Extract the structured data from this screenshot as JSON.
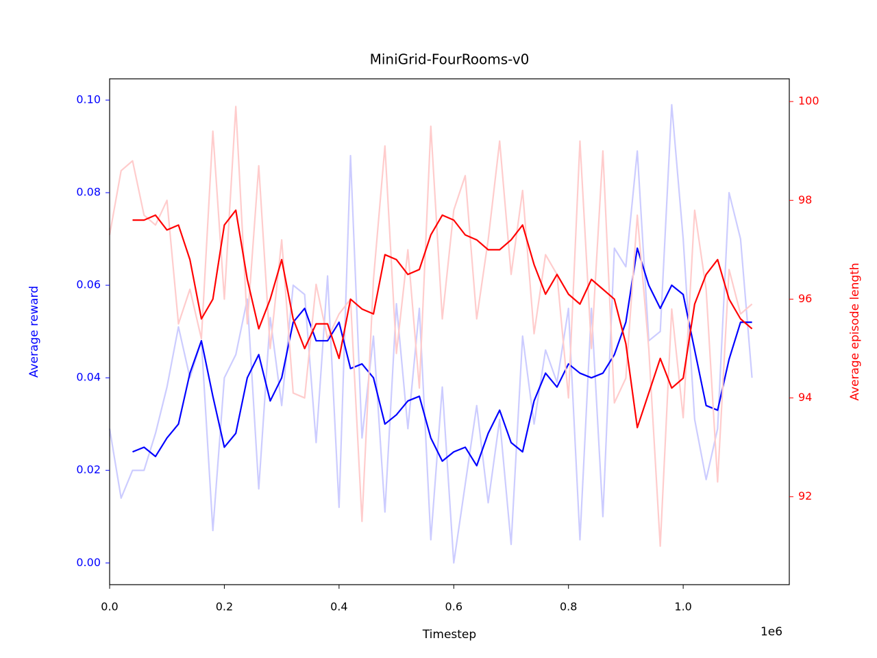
{
  "chart_data": {
    "type": "line",
    "title": "MiniGrid-FourRooms-v0",
    "xlabel": "Timestep",
    "ylabel": "Average reward",
    "y2label": "Average episode length",
    "x_offset_label": "1e6",
    "ylabel_color": "#0000ff",
    "y2label_color": "#ff0000",
    "x": [
      0,
      0.02,
      0.04,
      0.06,
      0.08,
      0.1,
      0.12,
      0.14,
      0.16,
      0.18,
      0.2,
      0.22,
      0.24,
      0.26,
      0.28,
      0.3,
      0.32,
      0.34,
      0.36,
      0.38,
      0.4,
      0.42,
      0.44,
      0.46,
      0.48,
      0.5,
      0.52,
      0.54,
      0.56,
      0.58,
      0.6,
      0.62,
      0.64,
      0.66,
      0.68,
      0.7,
      0.72,
      0.74,
      0.76,
      0.78,
      0.8,
      0.82,
      0.84,
      0.86,
      0.88,
      0.9,
      0.92,
      0.94,
      0.96,
      0.98,
      1.0,
      1.02,
      1.04,
      1.06,
      1.08,
      1.1,
      1.12
    ],
    "series": [
      {
        "color": "#ccccff",
        "axis": "y",
        "values": [
          0.029,
          0.014,
          0.02,
          0.02,
          0.028,
          0.038,
          0.051,
          0.04,
          0.048,
          0.007,
          0.04,
          0.045,
          0.057,
          0.016,
          0.053,
          0.034,
          0.06,
          0.058,
          0.026,
          0.062,
          0.012,
          0.088,
          0.027,
          0.049,
          0.011,
          0.056,
          0.029,
          0.055,
          0.005,
          0.038,
          0.0,
          0.017,
          0.034,
          0.013,
          0.031,
          0.004,
          0.049,
          0.03,
          0.046,
          0.039,
          0.055,
          0.005,
          0.055,
          0.01,
          0.068,
          0.064,
          0.089,
          0.048,
          0.05,
          0.099,
          0.07,
          0.031,
          0.018,
          0.029,
          0.08,
          0.07,
          0.04
        ]
      },
      {
        "color": "#0000ff",
        "axis": "y",
        "values": [
          null,
          null,
          0.024,
          0.025,
          0.023,
          0.027,
          0.03,
          0.041,
          0.048,
          0.036,
          0.025,
          0.028,
          0.04,
          0.045,
          0.035,
          0.04,
          0.052,
          0.055,
          0.048,
          0.048,
          0.052,
          0.042,
          0.043,
          0.04,
          0.03,
          0.032,
          0.035,
          0.036,
          0.027,
          0.022,
          0.024,
          0.025,
          0.021,
          0.028,
          0.033,
          0.026,
          0.024,
          0.035,
          0.041,
          0.038,
          0.043,
          0.041,
          0.04,
          0.041,
          0.045,
          0.052,
          0.068,
          0.06,
          0.055,
          0.06,
          0.058,
          0.046,
          0.034,
          0.033,
          0.044,
          0.052,
          0.052
        ]
      },
      {
        "color": "#ffcccc",
        "axis": "y2",
        "values": [
          97.3,
          98.6,
          98.8,
          97.7,
          97.5,
          98.0,
          95.5,
          96.2,
          95.2,
          99.4,
          96.0,
          99.9,
          95.5,
          98.7,
          95.0,
          97.2,
          94.1,
          94.0,
          96.3,
          95.2,
          95.7,
          96.0,
          91.5,
          96.4,
          99.1,
          94.9,
          97.0,
          94.2,
          99.5,
          95.6,
          97.8,
          98.5,
          95.6,
          97.2,
          99.2,
          96.5,
          98.2,
          95.3,
          96.9,
          96.5,
          94.0,
          99.2,
          95.0,
          99.0,
          93.9,
          94.4,
          97.7,
          95.0,
          91.0,
          95.8,
          93.6,
          97.8,
          96.2,
          92.3,
          96.6,
          95.7,
          95.9
        ]
      },
      {
        "color": "#ff0000",
        "axis": "y2",
        "values": [
          null,
          null,
          97.6,
          97.6,
          97.7,
          97.4,
          97.5,
          96.8,
          95.6,
          96.0,
          97.5,
          97.8,
          96.4,
          95.4,
          96.0,
          96.8,
          95.6,
          95.0,
          95.5,
          95.5,
          94.8,
          96.0,
          95.8,
          95.7,
          96.9,
          96.8,
          96.5,
          96.6,
          97.3,
          97.7,
          97.6,
          97.3,
          97.2,
          97.0,
          97.0,
          97.2,
          97.5,
          96.7,
          96.1,
          96.5,
          96.1,
          95.9,
          96.4,
          96.2,
          96.0,
          95.1,
          93.4,
          94.1,
          94.8,
          94.2,
          94.4,
          95.9,
          96.5,
          96.8,
          96.0,
          95.6,
          95.4
        ]
      }
    ],
    "xlim": [
      0,
      1.185
    ],
    "xticks": [
      {
        "value": 0,
        "label": "0.0"
      },
      0.2,
      0.4,
      0.6,
      0.8,
      {
        "value": 1,
        "label": "1.0"
      }
    ],
    "ylim": [
      -0.0047,
      0.1046
    ],
    "yticks": [
      {
        "value": 0,
        "label": "0.00"
      },
      {
        "value": 0.02,
        "label": "0.02"
      },
      {
        "value": 0.04,
        "label": "0.04"
      },
      {
        "value": 0.06,
        "label": "0.06"
      },
      {
        "value": 0.08,
        "label": "0.08"
      },
      {
        "value": 0.1,
        "label": "0.10"
      }
    ],
    "y2lim": [
      90.22,
      100.46
    ],
    "y2ticks": [
      92,
      94,
      96,
      98,
      100
    ],
    "grid": false
  }
}
